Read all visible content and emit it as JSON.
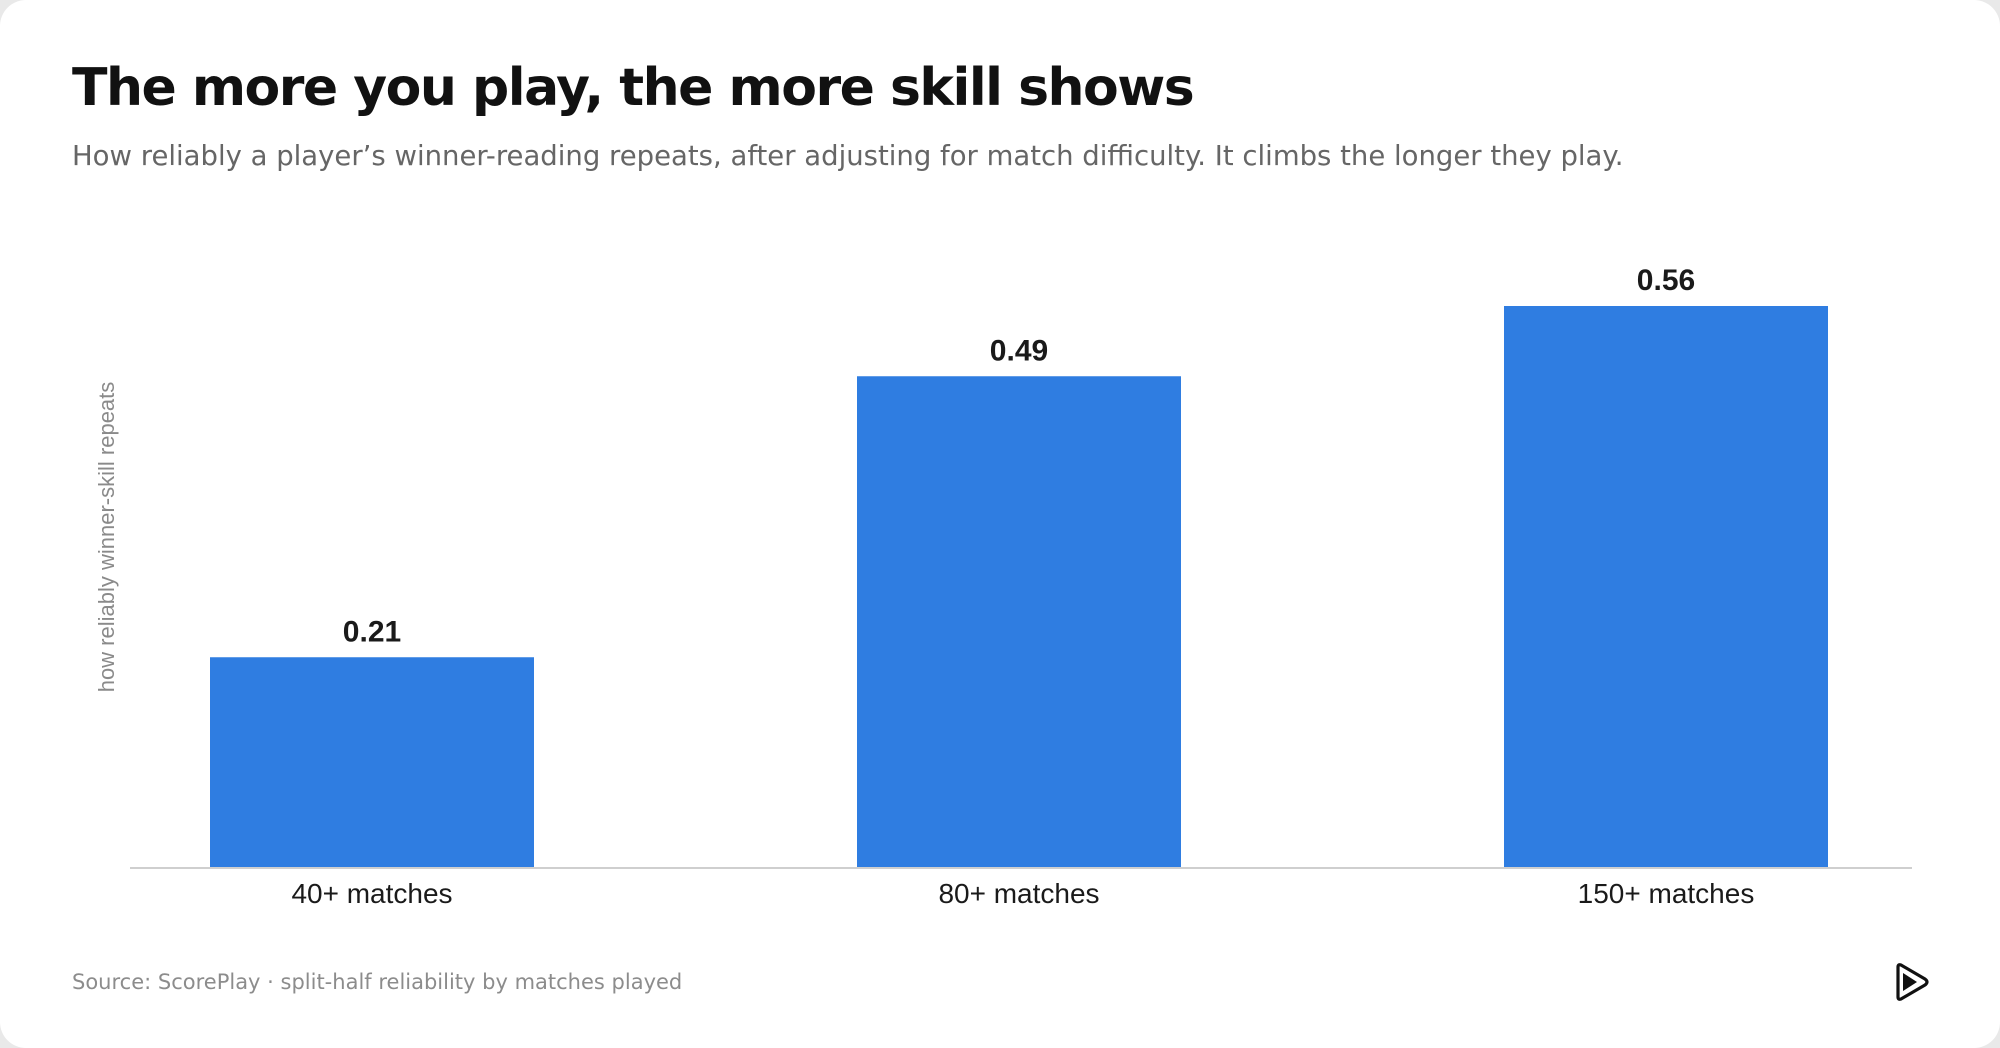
{
  "header": {
    "title": "The more you play, the more skill shows",
    "subtitle": "How reliably a player’s winner-reading repeats, after adjusting for match difficulty. It climbs the longer they play."
  },
  "footer": {
    "source": "Source: ScorePlay · split-half reliability by matches played"
  },
  "logo": {
    "icon": "play-logo-icon"
  },
  "colors": {
    "bar": "#2f7de1",
    "axis": "#cfcfcf",
    "label": "#1a1a1a"
  },
  "chart_data": {
    "type": "bar",
    "title": "The more you play, the more skill shows",
    "ylabel": "how reliably winner-skill repeats",
    "xlabel": "",
    "categories": [
      "40+ matches",
      "80+ matches",
      "150+ matches"
    ],
    "values": [
      0.21,
      0.49,
      0.56
    ],
    "value_labels": [
      "0.21",
      "0.49",
      "0.56"
    ],
    "ylim": [
      0,
      0.56
    ],
    "grid": false,
    "legend": "none"
  }
}
